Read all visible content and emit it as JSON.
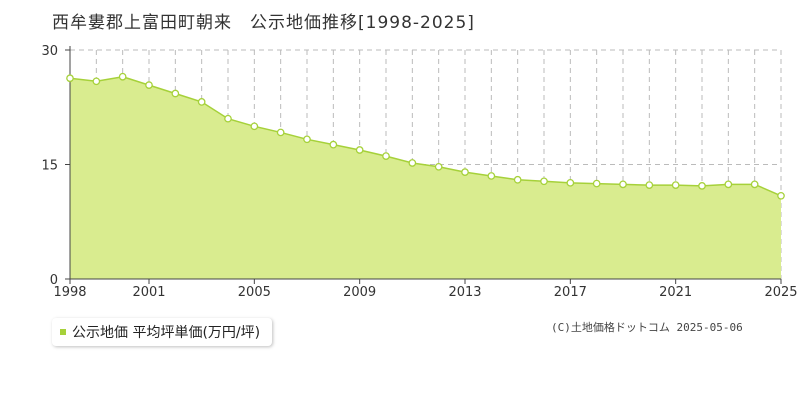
{
  "title": "西牟婁郡上富田町朝来　公示地価推移[1998-2025]",
  "credit": "(C)土地価格ドットコム 2025-05-06",
  "colors": {
    "fill": "#d9ec8f",
    "line": "#a6d13a",
    "marker_fill": "#ffffff",
    "axis": "#444444",
    "grid": "#bbbbbb",
    "legend_swatch": "#a6d13a"
  },
  "chart_data": {
    "type": "area",
    "title": "",
    "xlabel": "",
    "ylabel": "",
    "xlim": [
      1998,
      2025
    ],
    "ylim": [
      0,
      30
    ],
    "y_ticks": [
      "0",
      "15",
      "30"
    ],
    "x_ticks": [
      "1998",
      "2001",
      "2005",
      "2009",
      "2013",
      "2017",
      "2021",
      "2025"
    ],
    "grid": true,
    "legend_position": "bottom-left",
    "series": [
      {
        "name": "公示地価 平均坪単価(万円/坪)",
        "x": [
          1998,
          1999,
          2000,
          2001,
          2002,
          2003,
          2004,
          2005,
          2006,
          2007,
          2008,
          2009,
          2010,
          2011,
          2012,
          2013,
          2014,
          2015,
          2016,
          2017,
          2018,
          2019,
          2020,
          2021,
          2022,
          2023,
          2024,
          2025
        ],
        "y": [
          26.3,
          25.9,
          26.5,
          25.4,
          24.3,
          23.2,
          21.0,
          20.0,
          19.2,
          18.3,
          17.6,
          16.9,
          16.1,
          15.2,
          14.7,
          14.0,
          13.5,
          13.0,
          12.8,
          12.6,
          12.5,
          12.4,
          12.3,
          12.3,
          12.2,
          12.4,
          12.4,
          10.9
        ]
      }
    ]
  }
}
